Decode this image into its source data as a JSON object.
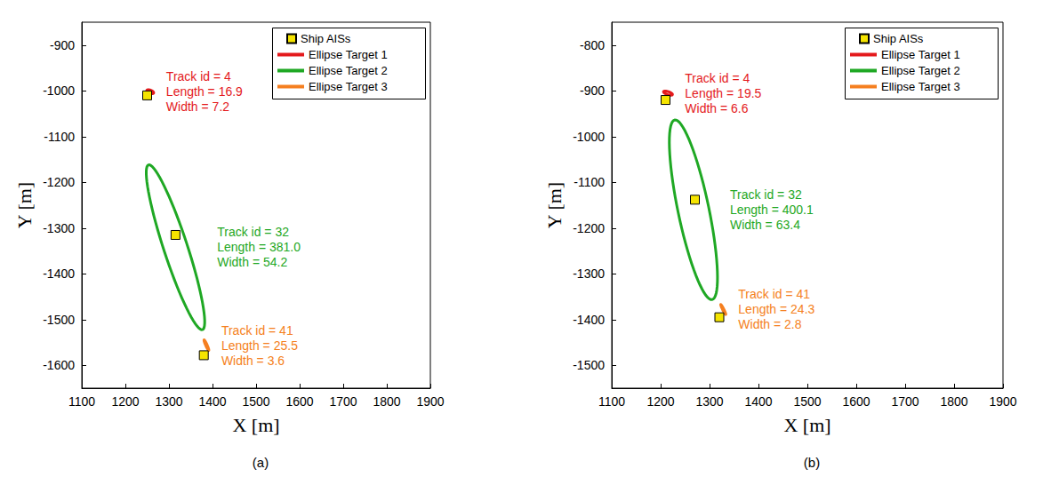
{
  "chart_data": [
    {
      "type": "scatter",
      "title": "(a)",
      "x_label": "X [m]",
      "y_label": "Y [m]",
      "xlim": [
        1100,
        1900
      ],
      "xticks": [
        1100,
        1200,
        1300,
        1400,
        1500,
        1600,
        1700,
        1800,
        1900
      ],
      "ylim": [
        -1650,
        -850
      ],
      "yticks": [
        -1600,
        -1500,
        -1400,
        -1300,
        -1200,
        -1100,
        -1000,
        -900
      ],
      "grid": false,
      "legend": "upper right",
      "series": [
        {
          "name": "Ship AISs",
          "type": "scatter",
          "marker": "square",
          "color": "#f5e400",
          "x": [
            1250,
            1315,
            1380
          ],
          "y": [
            -1010,
            -1315,
            -1578
          ]
        },
        {
          "name": "Ellipse Target 1",
          "type": "ellipse",
          "color": "#e41a1c",
          "center": [
            1257,
            -1002
          ],
          "length": 16.9,
          "width": 7.2,
          "heading_deg": 160,
          "annotation": [
            "Track id = 4",
            "Length = 16.9",
            "Width = 7.2"
          ]
        },
        {
          "name": "Ellipse Target 2",
          "type": "ellipse",
          "color": "#1fa824",
          "center": [
            1315,
            -1342
          ],
          "length": 381.0,
          "width": 54.2,
          "heading_deg": 109,
          "annotation": [
            "Track id = 32",
            "Length = 381.0",
            "Width = 54.2"
          ]
        },
        {
          "name": "Ellipse Target 3",
          "type": "ellipse",
          "color": "#f57f20",
          "center": [
            1386,
            -1556
          ],
          "length": 25.5,
          "width": 3.6,
          "heading_deg": 115,
          "annotation": [
            "Track id = 41",
            "Length = 25.5",
            "Width = 3.6"
          ]
        }
      ]
    },
    {
      "type": "scatter",
      "title": "(b)",
      "x_label": "X [m]",
      "y_label": "Y [m]",
      "xlim": [
        1100,
        1900
      ],
      "xticks": [
        1100,
        1200,
        1300,
        1400,
        1500,
        1600,
        1700,
        1800,
        1900
      ],
      "ylim": [
        -1550,
        -750
      ],
      "yticks": [
        -1500,
        -1400,
        -1300,
        -1200,
        -1100,
        -1000,
        -900,
        -800
      ],
      "grid": false,
      "legend": "upper right",
      "series": [
        {
          "name": "Ship AISs",
          "type": "scatter",
          "marker": "square",
          "color": "#f5e400",
          "x": [
            1210,
            1270,
            1320
          ],
          "y": [
            -920,
            -1138,
            -1395
          ]
        },
        {
          "name": "Ellipse Target 1",
          "type": "ellipse",
          "color": "#e41a1c",
          "center": [
            1215,
            -905
          ],
          "length": 19.5,
          "width": 6.6,
          "heading_deg": 160,
          "annotation": [
            "Track id = 4",
            "Length = 19.5",
            "Width = 6.6"
          ]
        },
        {
          "name": "Ellipse Target 2",
          "type": "ellipse",
          "color": "#1fa824",
          "center": [
            1267,
            -1160
          ],
          "length": 400.1,
          "width": 63.4,
          "heading_deg": 101,
          "annotation": [
            "Track id = 32",
            "Length = 400.1",
            "Width = 63.4"
          ]
        },
        {
          "name": "Ellipse Target 3",
          "type": "ellipse",
          "color": "#f57f20",
          "center": [
            1328,
            -1378
          ],
          "length": 24.3,
          "width": 2.8,
          "heading_deg": 115,
          "annotation": [
            "Track id = 41",
            "Length = 24.3",
            "Width = 2.8"
          ]
        }
      ]
    }
  ]
}
